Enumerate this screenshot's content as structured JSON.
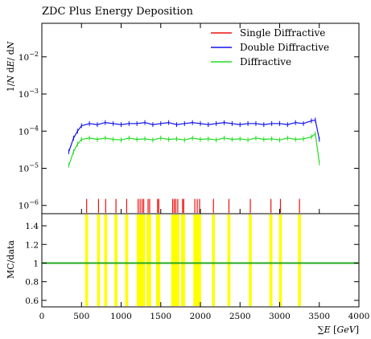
{
  "title": "ZDC Plus Energy Deposition",
  "colors": {
    "single": "#ee1111",
    "double": "#1111ee",
    "diffractive": "#22dd22",
    "ratio_band": "#ffff00",
    "ratio_line": "#22aa22"
  },
  "chart_data": [
    {
      "type": "line",
      "title": "ZDC Plus Energy Deposition",
      "xlabel": "",
      "ylabel": "1/N dE/dN",
      "yscale": "log",
      "xlim": [
        0,
        4000
      ],
      "ylim": [
        6e-07,
        0.08
      ],
      "x_ticks": [
        0,
        500,
        1000,
        1500,
        2000,
        2500,
        3000,
        3500,
        4000
      ],
      "y_tick_labels": [
        "10^-2",
        "10^-3",
        "10^-4",
        "10^-5",
        "10^-6"
      ],
      "y_tick_values": [
        0.01,
        0.001,
        0.0001,
        1e-05,
        1e-06
      ],
      "legend_position": "top-right",
      "series": [
        {
          "name": "Single Diffractive",
          "key": "single",
          "style": "spikes",
          "x": [
            565,
            715,
            805,
            935,
            1070,
            1215,
            1240,
            1265,
            1285,
            1340,
            1360,
            1460,
            1475,
            1650,
            1670,
            1690,
            1715,
            1775,
            1790,
            1930,
            1960,
            1990,
            2165,
            2360,
            2630,
            2890,
            3010,
            3250
          ],
          "values": [
            1.5e-06,
            1.5e-06,
            1.5e-06,
            1.5e-06,
            1.5e-06,
            1.5e-06,
            1.5e-06,
            1.5e-06,
            1.5e-06,
            1.5e-06,
            1.5e-06,
            1.5e-06,
            1.5e-06,
            1.5e-06,
            1.5e-06,
            1.5e-06,
            1.5e-06,
            1.5e-06,
            1.5e-06,
            1.5e-06,
            1.5e-06,
            1.5e-06,
            1.5e-06,
            1.5e-06,
            1.5e-06,
            1.5e-06,
            1.5e-06,
            1.5e-06
          ]
        },
        {
          "name": "Double Diffractive",
          "key": "double",
          "style": "line",
          "x": [
            340,
            400,
            450,
            500,
            600,
            700,
            800,
            900,
            1000,
            1100,
            1200,
            1300,
            1400,
            1500,
            1600,
            1700,
            1800,
            1900,
            2000,
            2100,
            2200,
            2300,
            2400,
            2500,
            2600,
            2700,
            2800,
            2900,
            3000,
            3100,
            3200,
            3300,
            3400,
            3450,
            3500
          ],
          "values": [
            2.8e-05,
            6.5e-05,
            0.0001,
            0.00014,
            0.00016,
            0.00015,
            0.00017,
            0.00016,
            0.00015,
            0.00016,
            0.00016,
            0.00017,
            0.00015,
            0.00016,
            0.00017,
            0.00015,
            0.00016,
            0.00017,
            0.00016,
            0.00015,
            0.00016,
            0.00017,
            0.00016,
            0.00015,
            0.00016,
            0.00016,
            0.00015,
            0.00016,
            0.00016,
            0.00015,
            0.00017,
            0.00016,
            0.00019,
            0.0002,
            6e-05
          ]
        },
        {
          "name": "Diffractive",
          "key": "diffractive",
          "style": "line",
          "x": [
            340,
            400,
            450,
            500,
            600,
            700,
            800,
            900,
            1000,
            1100,
            1200,
            1300,
            1400,
            1500,
            1600,
            1700,
            1800,
            1900,
            2000,
            2100,
            2200,
            2300,
            2400,
            2500,
            2600,
            2700,
            2800,
            2900,
            3000,
            3100,
            3200,
            3300,
            3400,
            3450,
            3500
          ],
          "values": [
            1.2e-05,
            2.8e-05,
            4.5e-05,
            6e-05,
            6.5e-05,
            6e-05,
            6.5e-05,
            6e-05,
            5.8e-05,
            6.5e-05,
            6e-05,
            6.2e-05,
            5.8e-05,
            6.5e-05,
            6e-05,
            6.2e-05,
            5.8e-05,
            6.5e-05,
            6e-05,
            6.2e-05,
            5.8e-05,
            6.5e-05,
            6e-05,
            6.2e-05,
            5.8e-05,
            6.5e-05,
            6e-05,
            6.2e-05,
            5.8e-05,
            6.5e-05,
            6e-05,
            6.2e-05,
            7e-05,
            8.5e-05,
            1.4e-05
          ]
        }
      ]
    },
    {
      "type": "line",
      "title": "",
      "xlabel": "∑E [GeV]",
      "ylabel": "MC/data",
      "xlim": [
        0,
        4000
      ],
      "ylim": [
        0.53,
        1.53
      ],
      "x_ticks": [
        0,
        500,
        1000,
        1500,
        2000,
        2500,
        3000,
        3500,
        4000
      ],
      "x_tick_labels": [
        "0",
        "500",
        "1000",
        "1500",
        "2000",
        "2500",
        "3000",
        "3500",
        "4000"
      ],
      "y_ticks": [
        0.6,
        0.8,
        1.0,
        1.2,
        1.4
      ],
      "y_tick_labels": [
        "0.6",
        "0.8",
        "1",
        "1.2",
        "1.4"
      ],
      "reference_line": 1.0,
      "band_positions_x": [
        565,
        715,
        805,
        935,
        1070,
        1215,
        1240,
        1265,
        1285,
        1340,
        1360,
        1460,
        1475,
        1650,
        1670,
        1690,
        1715,
        1775,
        1790,
        1930,
        1960,
        1990,
        2165,
        2360,
        2630,
        2890,
        3010,
        3250
      ]
    }
  ]
}
